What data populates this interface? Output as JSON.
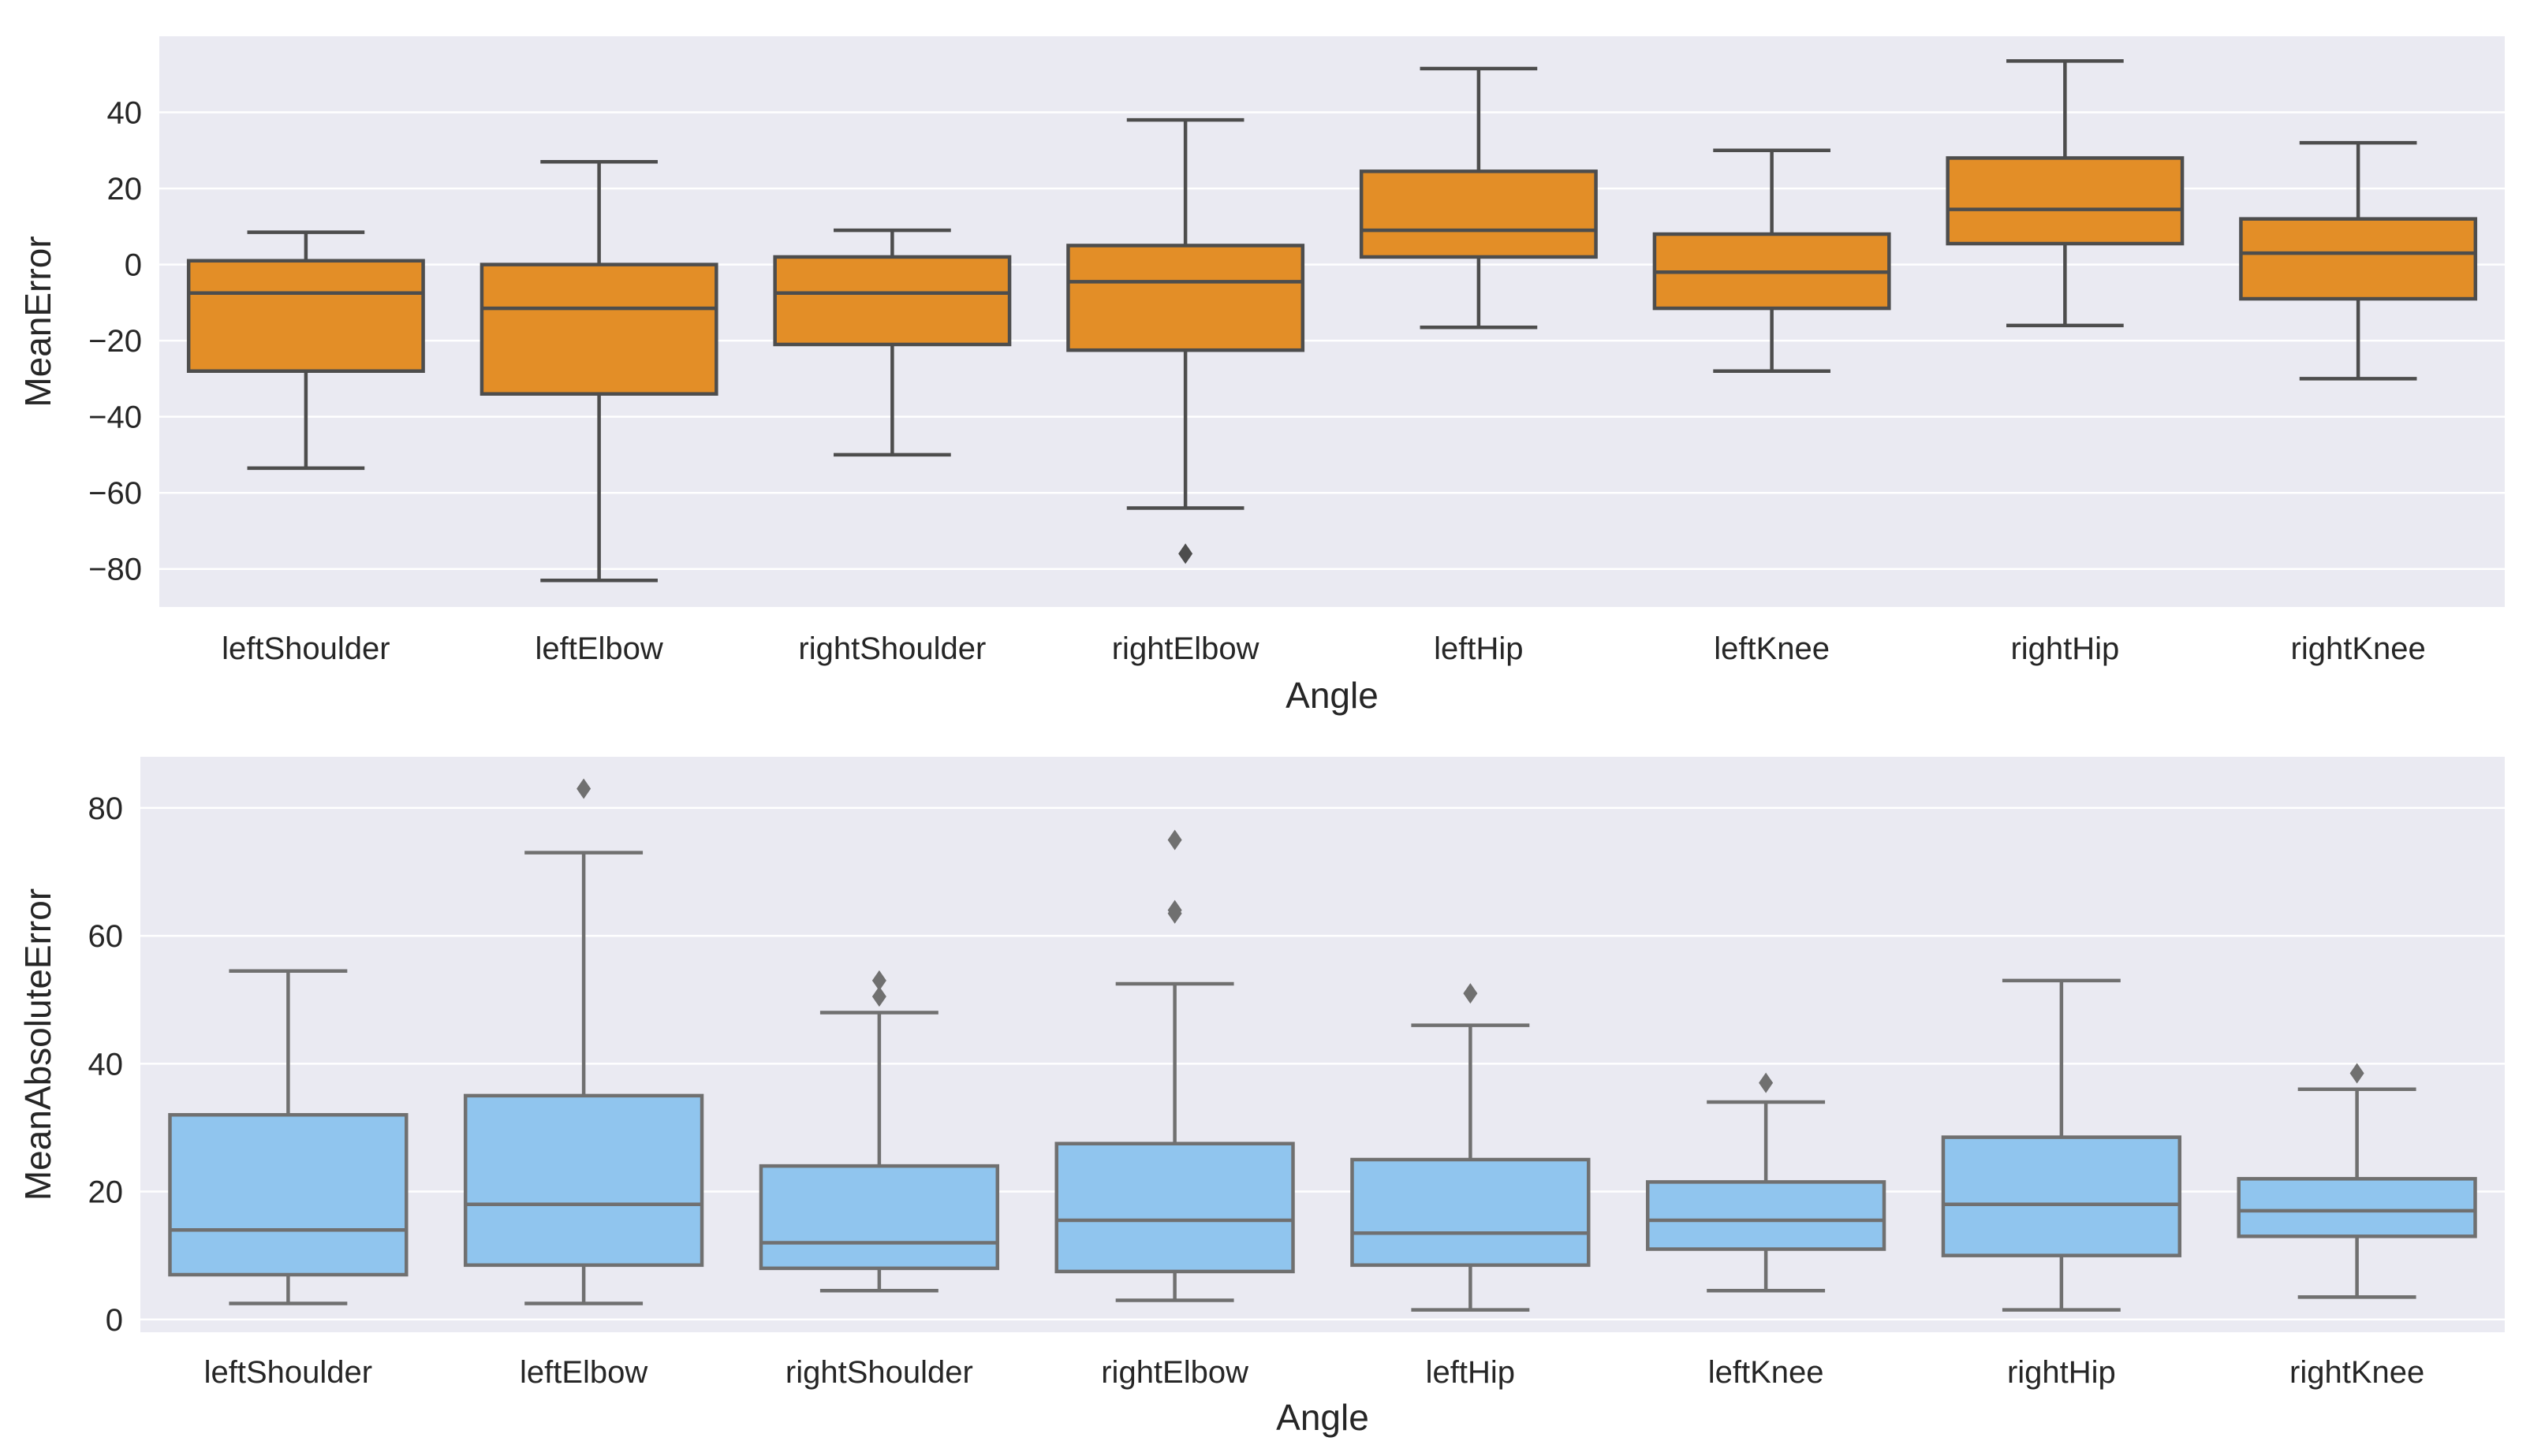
{
  "colors": {
    "background": "#eaeaf2",
    "grid": "#ffffff",
    "box_edge": "#4d4d4d",
    "box_edge_light": "#707070",
    "orange": "#e38e27",
    "blue": "#90c5ee"
  },
  "chart_data": [
    {
      "type": "box",
      "title": "",
      "xlabel": "Angle",
      "ylabel": "MeanError",
      "ylim": [
        -90,
        60
      ],
      "yticks": [
        -80,
        -60,
        -40,
        -20,
        0,
        20,
        40
      ],
      "ytick_labels": [
        "−80",
        "−60",
        "−40",
        "−20",
        "0",
        "20",
        "40"
      ],
      "grid": true,
      "box_color": "orange",
      "edge_color": "box_edge",
      "categories": [
        "leftShoulder",
        "leftElbow",
        "rightShoulder",
        "rightElbow",
        "leftHip",
        "leftKnee",
        "rightHip",
        "rightKnee"
      ],
      "boxes": [
        {
          "whisker_low": -53.5,
          "q1": -28,
          "median": -7.5,
          "q3": 1,
          "whisker_high": 8.5,
          "outliers": []
        },
        {
          "whisker_low": -83,
          "q1": -34,
          "median": -11.5,
          "q3": 0,
          "whisker_high": 27,
          "outliers": []
        },
        {
          "whisker_low": -50,
          "q1": -21,
          "median": -7.5,
          "q3": 2,
          "whisker_high": 9,
          "outliers": []
        },
        {
          "whisker_low": -64,
          "q1": -22.5,
          "median": -4.5,
          "q3": 5,
          "whisker_high": 38,
          "outliers": [
            -76
          ]
        },
        {
          "whisker_low": -16.5,
          "q1": 2,
          "median": 9,
          "q3": 24.5,
          "whisker_high": 51.5,
          "outliers": []
        },
        {
          "whisker_low": -28,
          "q1": -11.5,
          "median": -2,
          "q3": 8,
          "whisker_high": 30,
          "outliers": []
        },
        {
          "whisker_low": -16,
          "q1": 5.5,
          "median": 14.5,
          "q3": 28,
          "whisker_high": 53.5,
          "outliers": []
        },
        {
          "whisker_low": -30,
          "q1": -9,
          "median": 3,
          "q3": 12,
          "whisker_high": 32,
          "outliers": []
        }
      ]
    },
    {
      "type": "box",
      "title": "",
      "xlabel": "Angle",
      "ylabel": "MeanAbsoluteError",
      "ylim": [
        -2,
        88
      ],
      "yticks": [
        0,
        20,
        40,
        60,
        80
      ],
      "ytick_labels": [
        "0",
        "20",
        "40",
        "60",
        "80"
      ],
      "grid": true,
      "box_color": "blue",
      "edge_color": "box_edge_light",
      "categories": [
        "leftShoulder",
        "leftElbow",
        "rightShoulder",
        "rightElbow",
        "leftHip",
        "leftKnee",
        "rightHip",
        "rightKnee"
      ],
      "boxes": [
        {
          "whisker_low": 2.5,
          "q1": 7,
          "median": 14,
          "q3": 32,
          "whisker_high": 54.5,
          "outliers": []
        },
        {
          "whisker_low": 2.5,
          "q1": 8.5,
          "median": 18,
          "q3": 35,
          "whisker_high": 73,
          "outliers": [
            83
          ]
        },
        {
          "whisker_low": 4.5,
          "q1": 8,
          "median": 12,
          "q3": 24,
          "whisker_high": 48,
          "outliers": [
            50.5,
            53
          ]
        },
        {
          "whisker_low": 3,
          "q1": 7.5,
          "median": 15.5,
          "q3": 27.5,
          "whisker_high": 52.5,
          "outliers": [
            63.5,
            64,
            75
          ]
        },
        {
          "whisker_low": 1.5,
          "q1": 8.5,
          "median": 13.5,
          "q3": 25,
          "whisker_high": 46,
          "outliers": [
            51
          ]
        },
        {
          "whisker_low": 4.5,
          "q1": 11,
          "median": 15.5,
          "q3": 21.5,
          "whisker_high": 34,
          "outliers": [
            37
          ]
        },
        {
          "whisker_low": 1.5,
          "q1": 10,
          "median": 18,
          "q3": 28.5,
          "whisker_high": 53,
          "outliers": []
        },
        {
          "whisker_low": 3.5,
          "q1": 13,
          "median": 17,
          "q3": 22,
          "whisker_high": 36,
          "outliers": [
            38.5
          ]
        }
      ]
    }
  ]
}
